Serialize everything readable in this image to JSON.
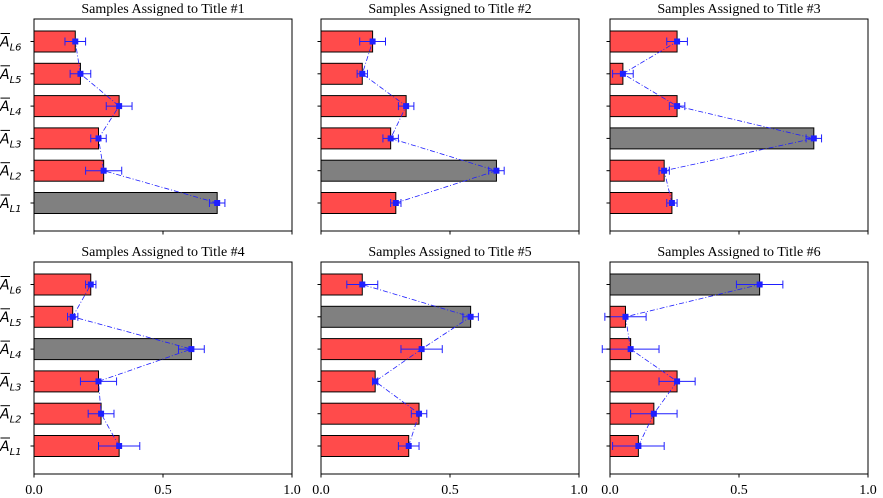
{
  "chart_data": {
    "type": "bar",
    "orientation": "horizontal",
    "categories": [
      "A_L1",
      "A_L2",
      "A_L3",
      "A_L4",
      "A_L5",
      "A_L6"
    ],
    "category_labels": [
      {
        "base": "A",
        "sub": "L1"
      },
      {
        "base": "A",
        "sub": "L2"
      },
      {
        "base": "A",
        "sub": "L3"
      },
      {
        "base": "A",
        "sub": "L4"
      },
      {
        "base": "A",
        "sub": "L5"
      },
      {
        "base": "A",
        "sub": "L6"
      }
    ],
    "xlim": [
      0,
      1.0
    ],
    "xticks": [
      "0.0",
      "0.5",
      "1.0"
    ],
    "colors": {
      "bar": "#ff4b4b",
      "highlight": "#808080",
      "edge": "#000000",
      "marker": "#1f1fff"
    },
    "panels": [
      {
        "title": "Samples Assigned to Title #1",
        "highlight": 0,
        "values": [
          0.71,
          0.27,
          0.25,
          0.33,
          0.18,
          0.16
        ],
        "errors": [
          0.03,
          0.07,
          0.03,
          0.05,
          0.04,
          0.04
        ]
      },
      {
        "title": "Samples Assigned to Title #2",
        "highlight": 1,
        "values": [
          0.29,
          0.68,
          0.27,
          0.33,
          0.16,
          0.2
        ],
        "errors": [
          0.02,
          0.03,
          0.03,
          0.03,
          0.02,
          0.05
        ]
      },
      {
        "title": "Samples Assigned to Title #3",
        "highlight": 2,
        "values": [
          0.24,
          0.21,
          0.79,
          0.26,
          0.05,
          0.26
        ],
        "errors": [
          0.02,
          0.02,
          0.03,
          0.03,
          0.04,
          0.04
        ]
      },
      {
        "title": "Samples Assigned to Title #4",
        "highlight": 3,
        "values": [
          0.33,
          0.26,
          0.25,
          0.61,
          0.15,
          0.22
        ],
        "errors": [
          0.08,
          0.05,
          0.07,
          0.05,
          0.02,
          0.02
        ]
      },
      {
        "title": "Samples Assigned to Title #5",
        "highlight": 4,
        "values": [
          0.34,
          0.38,
          0.21,
          0.39,
          0.58,
          0.16
        ],
        "errors": [
          0.04,
          0.03,
          0.01,
          0.08,
          0.03,
          0.06
        ]
      },
      {
        "title": "Samples Assigned to Title #6",
        "highlight": 5,
        "values": [
          0.11,
          0.17,
          0.26,
          0.08,
          0.06,
          0.58
        ],
        "errors": [
          0.1,
          0.09,
          0.07,
          0.11,
          0.08,
          0.09
        ]
      }
    ]
  }
}
